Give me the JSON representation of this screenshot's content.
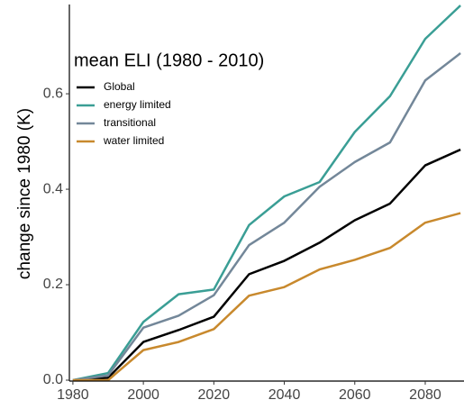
{
  "chart_data": {
    "type": "line",
    "y_label": "change since 1980 (K)",
    "legend_title": "mean ELI (1980 - 2010)",
    "x": [
      1980,
      1990,
      2000,
      2010,
      2020,
      2030,
      2040,
      2050,
      2060,
      2070,
      2080,
      2090
    ],
    "series": [
      {
        "name": "Global",
        "color": "#000000",
        "values": [
          0,
          0.005,
          0.08,
          0.105,
          0.133,
          0.222,
          0.25,
          0.288,
          0.335,
          0.37,
          0.45,
          0.483
        ]
      },
      {
        "name": "energy limited",
        "color": "#3a9e95",
        "values": [
          0,
          0.015,
          0.122,
          0.18,
          0.19,
          0.325,
          0.385,
          0.415,
          0.52,
          0.595,
          0.715,
          0.785
        ]
      },
      {
        "name": "transitional",
        "color": "#738799",
        "values": [
          0,
          0.01,
          0.11,
          0.135,
          0.178,
          0.283,
          0.33,
          0.405,
          0.457,
          0.498,
          0.628,
          0.685
        ]
      },
      {
        "name": "water limited",
        "color": "#c8892d",
        "values": [
          0,
          0,
          0.063,
          0.08,
          0.107,
          0.177,
          0.195,
          0.232,
          0.252,
          0.277,
          0.33,
          0.35
        ]
      }
    ],
    "xlim": [
      1979,
      2091
    ],
    "ylim": [
      0,
      0.787
    ],
    "xticks": [
      1980,
      2000,
      2020,
      2040,
      2060,
      2080
    ],
    "yticks": [
      {
        "value": 0,
        "label": "0.0"
      },
      0.2,
      0.4,
      0.6
    ]
  }
}
